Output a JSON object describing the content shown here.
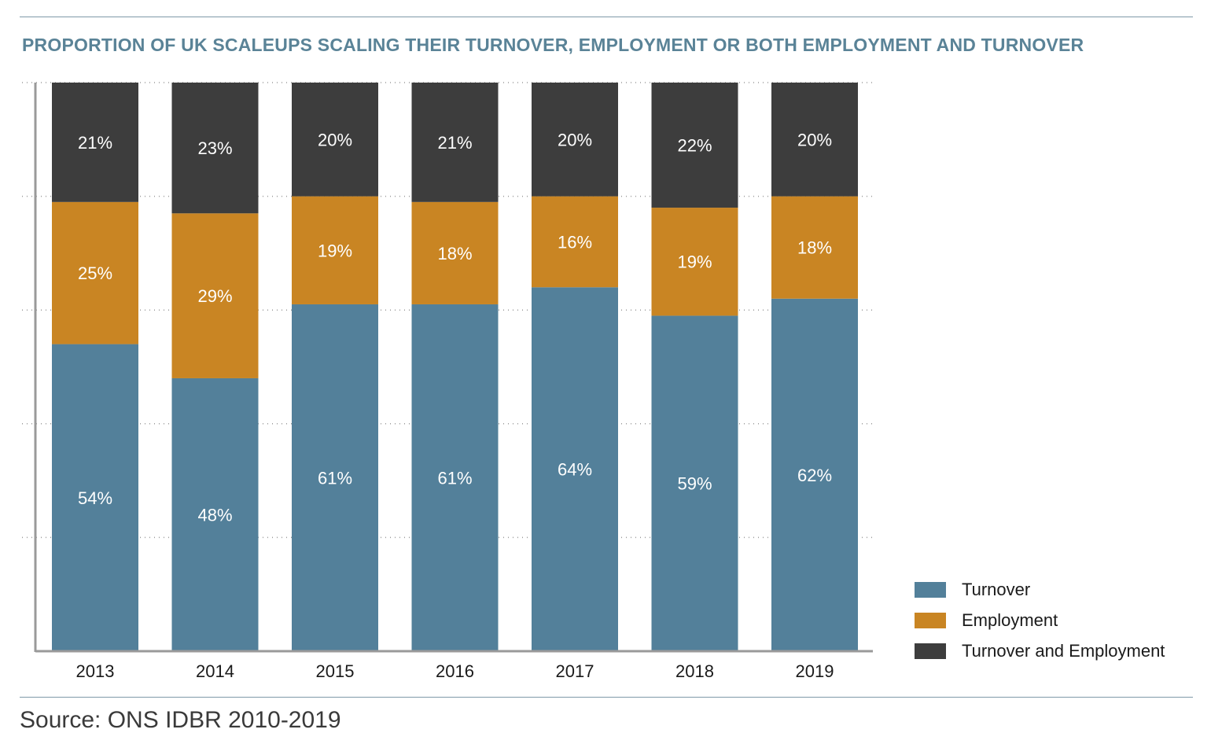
{
  "title": "PROPORTION OF UK SCALEUPS SCALING THEIR TURNOVER, EMPLOYMENT OR BOTH EMPLOYMENT AND TURNOVER",
  "source": "Source: ONS IDBR 2010-2019",
  "colors": {
    "turnover": "#53809a",
    "employment": "#c98523",
    "both": "#3d3d3d",
    "accent": "#5a8397"
  },
  "chart_data": {
    "type": "bar",
    "stacked": true,
    "categories": [
      "2013",
      "2014",
      "2015",
      "2016",
      "2017",
      "2018",
      "2019"
    ],
    "series": [
      {
        "name": "Turnover",
        "values": [
          54,
          48,
          61,
          61,
          64,
          59,
          62
        ],
        "labels": [
          "54%",
          "48%",
          "61%",
          "61%",
          "64%",
          "59%",
          "62%"
        ]
      },
      {
        "name": "Employment",
        "values": [
          25,
          29,
          19,
          18,
          16,
          19,
          18
        ],
        "labels": [
          "25%",
          "29%",
          "19%",
          "18%",
          "16%",
          "19%",
          "18%"
        ]
      },
      {
        "name": "Turnover and Employment",
        "values": [
          21,
          23,
          20,
          21,
          20,
          22,
          20
        ],
        "labels": [
          "21%",
          "23%",
          "20%",
          "21%",
          "20%",
          "22%",
          "20%"
        ]
      }
    ],
    "ylim": [
      0,
      100
    ],
    "grid": true,
    "legend": "bottom-right"
  }
}
